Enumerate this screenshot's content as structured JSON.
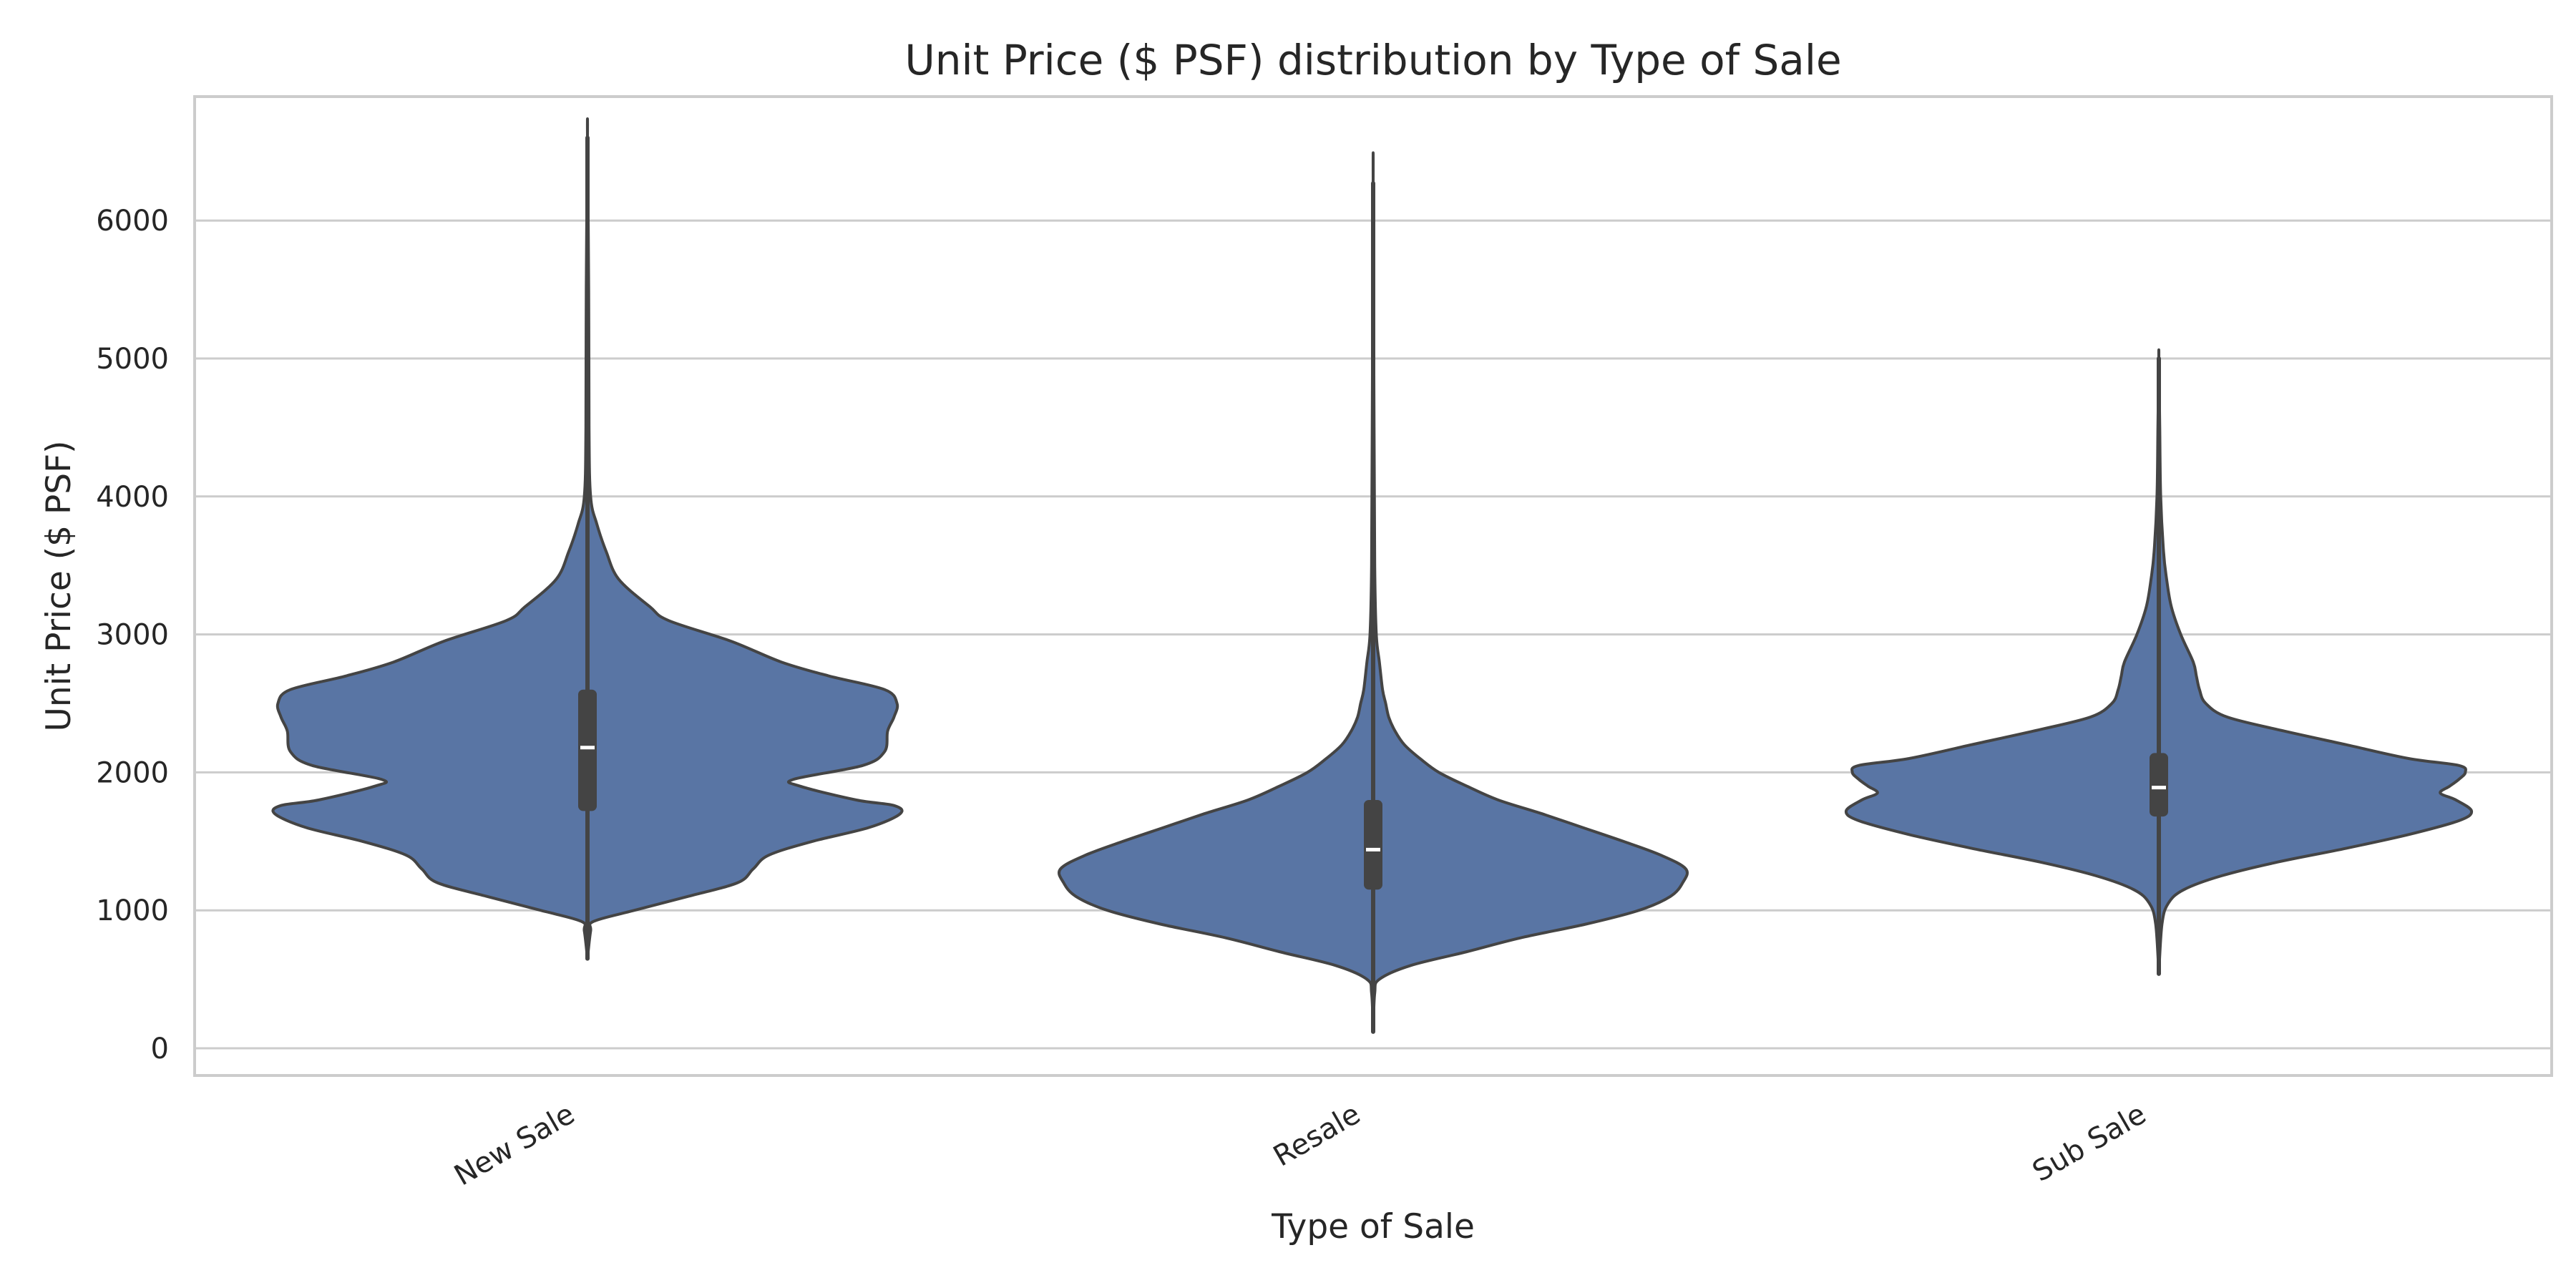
{
  "chart_data": {
    "type": "violin",
    "title": "Unit Price ($ PSF) distribution by Type of Sale",
    "xlabel": "Type of Sale",
    "ylabel": "Unit Price ($ PSF)",
    "ylim": [
      -200,
      6900
    ],
    "yticks": [
      0,
      1000,
      2000,
      3000,
      4000,
      5000,
      6000
    ],
    "grid": "horizontal",
    "color": "#5975a4",
    "line_color": "#444444",
    "categories": [
      "New Sale",
      "Resale",
      "Sub Sale"
    ],
    "violins": [
      {
        "category": "New Sale",
        "min": 650,
        "q1": 1720,
        "median": 2180,
        "q3": 2600,
        "max": 6600,
        "whisker_low": 650,
        "whisker_high": 3950,
        "density": [
          [
            650,
            0.0
          ],
          [
            850,
            0.01
          ],
          [
            920,
            0.02
          ],
          [
            1000,
            0.15
          ],
          [
            1100,
            0.32
          ],
          [
            1200,
            0.48
          ],
          [
            1300,
            0.53
          ],
          [
            1400,
            0.58
          ],
          [
            1500,
            0.72
          ],
          [
            1600,
            0.9
          ],
          [
            1700,
            1.0
          ],
          [
            1760,
            0.98
          ],
          [
            1800,
            0.86
          ],
          [
            1900,
            0.68
          ],
          [
            1950,
            0.66
          ],
          [
            2050,
            0.88
          ],
          [
            2150,
            0.95
          ],
          [
            2300,
            0.96
          ],
          [
            2400,
            0.98
          ],
          [
            2500,
            0.99
          ],
          [
            2600,
            0.95
          ],
          [
            2700,
            0.77
          ],
          [
            2800,
            0.62
          ],
          [
            2950,
            0.46
          ],
          [
            3100,
            0.26
          ],
          [
            3200,
            0.2
          ],
          [
            3400,
            0.1
          ],
          [
            3600,
            0.06
          ],
          [
            3800,
            0.03
          ],
          [
            4000,
            0.01
          ],
          [
            4500,
            0.005
          ],
          [
            5500,
            0.004
          ],
          [
            6600,
            0.0
          ]
        ]
      },
      {
        "category": "Resale",
        "min": 120,
        "q1": 1150,
        "median": 1440,
        "q3": 1800,
        "max": 6270,
        "whisker_low": 120,
        "whisker_high": 2740,
        "density": [
          [
            120,
            0.0
          ],
          [
            400,
            0.005
          ],
          [
            500,
            0.02
          ],
          [
            600,
            0.12
          ],
          [
            700,
            0.3
          ],
          [
            800,
            0.47
          ],
          [
            900,
            0.68
          ],
          [
            1000,
            0.85
          ],
          [
            1100,
            0.95
          ],
          [
            1200,
            0.99
          ],
          [
            1300,
            1.0
          ],
          [
            1400,
            0.92
          ],
          [
            1500,
            0.8
          ],
          [
            1600,
            0.67
          ],
          [
            1700,
            0.54
          ],
          [
            1800,
            0.4
          ],
          [
            1900,
            0.3
          ],
          [
            2000,
            0.21
          ],
          [
            2100,
            0.15
          ],
          [
            2200,
            0.1
          ],
          [
            2300,
            0.07
          ],
          [
            2400,
            0.05
          ],
          [
            2500,
            0.04
          ],
          [
            2600,
            0.03
          ],
          [
            2800,
            0.02
          ],
          [
            3000,
            0.01
          ],
          [
            3500,
            0.005
          ],
          [
            4500,
            0.003
          ],
          [
            6270,
            0.0
          ]
        ]
      },
      {
        "category": "Sub Sale",
        "min": 540,
        "q1": 1680,
        "median": 1890,
        "q3": 2140,
        "max": 5000,
        "whisker_low": 540,
        "whisker_high": 2760,
        "density": [
          [
            540,
            0.0
          ],
          [
            900,
            0.01
          ],
          [
            1050,
            0.03
          ],
          [
            1150,
            0.08
          ],
          [
            1250,
            0.2
          ],
          [
            1350,
            0.38
          ],
          [
            1450,
            0.6
          ],
          [
            1550,
            0.8
          ],
          [
            1650,
            0.96
          ],
          [
            1720,
            1.0
          ],
          [
            1800,
            0.95
          ],
          [
            1850,
            0.9
          ],
          [
            1900,
            0.93
          ],
          [
            1950,
            0.96
          ],
          [
            2000,
            0.98
          ],
          [
            2050,
            0.96
          ],
          [
            2100,
            0.8
          ],
          [
            2200,
            0.6
          ],
          [
            2300,
            0.4
          ],
          [
            2400,
            0.22
          ],
          [
            2500,
            0.15
          ],
          [
            2600,
            0.13
          ],
          [
            2700,
            0.12
          ],
          [
            2800,
            0.11
          ],
          [
            3000,
            0.07
          ],
          [
            3200,
            0.04
          ],
          [
            3400,
            0.025
          ],
          [
            3600,
            0.015
          ],
          [
            4000,
            0.006
          ],
          [
            4500,
            0.003
          ],
          [
            5000,
            0.0
          ]
        ]
      }
    ]
  }
}
